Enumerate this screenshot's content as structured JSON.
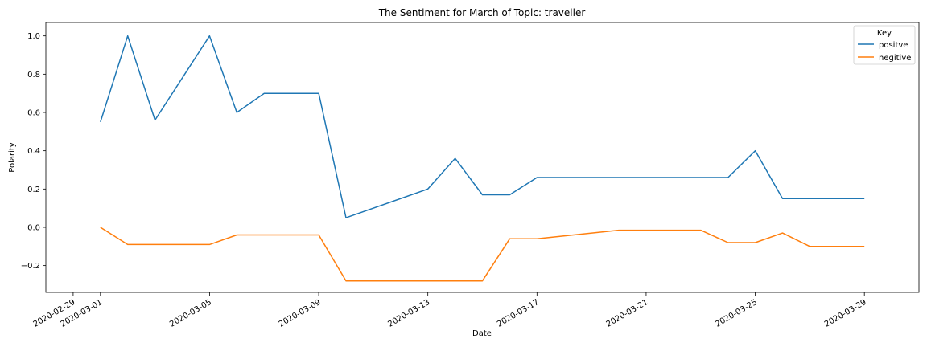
{
  "chart_data": {
    "type": "line",
    "title": "The Sentiment for March of Topic: traveller",
    "xlabel": "Date",
    "ylabel": "Polarity",
    "x_start": "2020-02-29",
    "xlim": [
      "2020-02-28",
      "2020-03-31"
    ],
    "ylim": [
      -0.34,
      1.07
    ],
    "x_ticks": [
      "2020-02-29",
      "2020-03-01",
      "2020-03-05",
      "2020-03-09",
      "2020-03-13",
      "2020-03-17",
      "2020-03-21",
      "2020-03-25",
      "2020-03-29"
    ],
    "y_ticks": [
      -0.2,
      0.0,
      0.2,
      0.4,
      0.6,
      0.8,
      1.0
    ],
    "y_tick_labels": [
      "−0.2",
      "0.0",
      "0.2",
      "0.4",
      "0.6",
      "0.8",
      "1.0"
    ],
    "legend": {
      "title": "Key",
      "position": "top-right"
    },
    "grid": false,
    "series": [
      {
        "name": "positve",
        "color": "#1f77b4",
        "points": [
          [
            "2020-03-01",
            0.55
          ],
          [
            "2020-03-02",
            1.0
          ],
          [
            "2020-03-03",
            0.56
          ],
          [
            "2020-03-05",
            1.0
          ],
          [
            "2020-03-06",
            0.6
          ],
          [
            "2020-03-07",
            0.7
          ],
          [
            "2020-03-09",
            0.7
          ],
          [
            "2020-03-10",
            0.05
          ],
          [
            "2020-03-13",
            0.2
          ],
          [
            "2020-03-14",
            0.36
          ],
          [
            "2020-03-15",
            0.17
          ],
          [
            "2020-03-16",
            0.17
          ],
          [
            "2020-03-17",
            0.26
          ],
          [
            "2020-03-24",
            0.26
          ],
          [
            "2020-03-25",
            0.4
          ],
          [
            "2020-03-26",
            0.15
          ],
          [
            "2020-03-29",
            0.15
          ]
        ]
      },
      {
        "name": "negitive",
        "color": "#ff7f0e",
        "points": [
          [
            "2020-03-01",
            0.0
          ],
          [
            "2020-03-02",
            -0.09
          ],
          [
            "2020-03-05",
            -0.09
          ],
          [
            "2020-03-06",
            -0.04
          ],
          [
            "2020-03-09",
            -0.04
          ],
          [
            "2020-03-10",
            -0.28
          ],
          [
            "2020-03-15",
            -0.28
          ],
          [
            "2020-03-16",
            -0.06
          ],
          [
            "2020-03-17",
            -0.06
          ],
          [
            "2020-03-20",
            -0.015
          ],
          [
            "2020-03-23",
            -0.015
          ],
          [
            "2020-03-24",
            -0.08
          ],
          [
            "2020-03-25",
            -0.08
          ],
          [
            "2020-03-26",
            -0.03
          ],
          [
            "2020-03-27",
            -0.1
          ],
          [
            "2020-03-29",
            -0.1
          ]
        ]
      }
    ]
  }
}
